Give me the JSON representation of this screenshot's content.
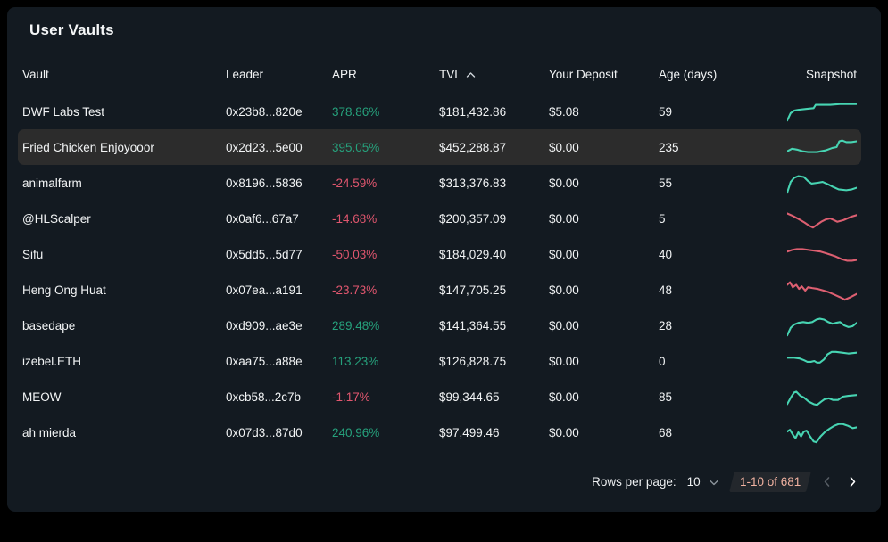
{
  "title": "User Vaults",
  "columns": {
    "vault": "Vault",
    "leader": "Leader",
    "apr": "APR",
    "tvl": "TVL",
    "deposit": "Your Deposit",
    "age": "Age (days)",
    "snapshot": "Snapshot"
  },
  "sort": {
    "column": "TVL",
    "direction": "ascending",
    "icon": "chevron-up-icon"
  },
  "rows": [
    {
      "vault": "DWF Labs Test",
      "leader": "0x23b8...820e",
      "apr": "378.86%",
      "apr_positive": true,
      "tvl": "$181,432.86",
      "deposit": "$5.08",
      "age": "59",
      "highlighted": false,
      "spark_color": "green",
      "spark": [
        [
          0,
          25
        ],
        [
          5,
          16
        ],
        [
          10,
          13
        ],
        [
          16,
          12
        ],
        [
          27,
          11
        ],
        [
          38,
          10
        ],
        [
          41,
          6
        ],
        [
          47,
          6
        ],
        [
          62,
          6
        ],
        [
          76,
          5
        ],
        [
          100,
          5
        ]
      ]
    },
    {
      "vault": "Fried Chicken Enjoyooor",
      "leader": "0x2d23...5e00",
      "apr": "395.05%",
      "apr_positive": true,
      "tvl": "$452,288.87",
      "deposit": "$0.00",
      "age": "235",
      "highlighted": true,
      "spark_color": "green",
      "spark": [
        [
          0,
          19
        ],
        [
          7,
          16
        ],
        [
          14,
          17
        ],
        [
          22,
          19
        ],
        [
          30,
          20
        ],
        [
          43,
          20
        ],
        [
          55,
          18
        ],
        [
          65,
          15
        ],
        [
          71,
          14
        ],
        [
          75,
          7
        ],
        [
          79,
          6
        ],
        [
          85,
          8
        ],
        [
          92,
          8
        ],
        [
          100,
          7
        ]
      ]
    },
    {
      "vault": "animalfarm",
      "leader": "0x8196...5836",
      "apr": "-24.59%",
      "apr_positive": false,
      "tvl": "$313,376.83",
      "deposit": "$0.00",
      "age": "55",
      "highlighted": false,
      "spark_color": "green",
      "spark": [
        [
          0,
          26
        ],
        [
          5,
          13
        ],
        [
          10,
          8
        ],
        [
          16,
          6
        ],
        [
          24,
          7
        ],
        [
          30,
          12
        ],
        [
          35,
          15
        ],
        [
          44,
          14
        ],
        [
          51,
          13
        ],
        [
          59,
          16
        ],
        [
          66,
          19
        ],
        [
          74,
          22
        ],
        [
          85,
          23
        ],
        [
          93,
          22
        ],
        [
          100,
          20
        ]
      ]
    },
    {
      "vault": "@HLScalper",
      "leader": "0x0af6...67a7",
      "apr": "-14.68%",
      "apr_positive": false,
      "tvl": "$200,357.09",
      "deposit": "$0.00",
      "age": "5",
      "highlighted": false,
      "spark_color": "red",
      "spark": [
        [
          0,
          8
        ],
        [
          8,
          11
        ],
        [
          17,
          15
        ],
        [
          25,
          19
        ],
        [
          32,
          23
        ],
        [
          37,
          25
        ],
        [
          44,
          21
        ],
        [
          49,
          18
        ],
        [
          56,
          15
        ],
        [
          62,
          14
        ],
        [
          67,
          16
        ],
        [
          72,
          18
        ],
        [
          81,
          16
        ],
        [
          92,
          12
        ],
        [
          100,
          10
        ]
      ]
    },
    {
      "vault": "Sifu",
      "leader": "0x5dd5...5d77",
      "apr": "-50.03%",
      "apr_positive": false,
      "tvl": "$184,029.40",
      "deposit": "$0.00",
      "age": "40",
      "highlighted": false,
      "spark_color": "red",
      "spark": [
        [
          0,
          11
        ],
        [
          7,
          9
        ],
        [
          14,
          8
        ],
        [
          22,
          8
        ],
        [
          31,
          9
        ],
        [
          40,
          10
        ],
        [
          48,
          11
        ],
        [
          56,
          13
        ],
        [
          63,
          15
        ],
        [
          70,
          17
        ],
        [
          78,
          20
        ],
        [
          86,
          22
        ],
        [
          93,
          22
        ],
        [
          100,
          21
        ]
      ]
    },
    {
      "vault": "Heng Ong Huat",
      "leader": "0x07ea...a191",
      "apr": "-23.73%",
      "apr_positive": false,
      "tvl": "$147,705.25",
      "deposit": "$0.00",
      "age": "48",
      "highlighted": false,
      "spark_color": "red",
      "spark": [
        [
          0,
          8
        ],
        [
          4,
          5
        ],
        [
          8,
          11
        ],
        [
          13,
          8
        ],
        [
          17,
          13
        ],
        [
          21,
          10
        ],
        [
          26,
          15
        ],
        [
          30,
          11
        ],
        [
          36,
          12
        ],
        [
          44,
          13
        ],
        [
          52,
          15
        ],
        [
          60,
          17
        ],
        [
          68,
          20
        ],
        [
          76,
          23
        ],
        [
          83,
          26
        ],
        [
          91,
          23
        ],
        [
          100,
          19
        ]
      ]
    },
    {
      "vault": "basedape",
      "leader": "0xd909...ae3e",
      "apr": "289.48%",
      "apr_positive": true,
      "tvl": "$141,364.55",
      "deposit": "$0.00",
      "age": "28",
      "highlighted": false,
      "spark_color": "green",
      "spark": [
        [
          0,
          26
        ],
        [
          5,
          17
        ],
        [
          10,
          13
        ],
        [
          16,
          11
        ],
        [
          23,
          10
        ],
        [
          30,
          11
        ],
        [
          36,
          10
        ],
        [
          42,
          7
        ],
        [
          47,
          6
        ],
        [
          53,
          7
        ],
        [
          59,
          10
        ],
        [
          65,
          12
        ],
        [
          70,
          11
        ],
        [
          76,
          10
        ],
        [
          82,
          14
        ],
        [
          88,
          16
        ],
        [
          94,
          15
        ],
        [
          100,
          11
        ]
      ]
    },
    {
      "vault": "izebel.ETH",
      "leader": "0xaa75...a88e",
      "apr": "113.23%",
      "apr_positive": true,
      "tvl": "$126,828.75",
      "deposit": "$0.00",
      "age": "0",
      "highlighted": false,
      "spark_color": "green",
      "spark": [
        [
          0,
          10
        ],
        [
          10,
          10
        ],
        [
          18,
          11
        ],
        [
          24,
          13
        ],
        [
          29,
          15
        ],
        [
          34,
          15
        ],
        [
          39,
          14
        ],
        [
          43,
          16
        ],
        [
          47,
          16
        ],
        [
          53,
          12
        ],
        [
          58,
          6
        ],
        [
          64,
          3
        ],
        [
          70,
          3
        ],
        [
          79,
          4
        ],
        [
          88,
          5
        ],
        [
          100,
          4
        ]
      ]
    },
    {
      "vault": "MEOW",
      "leader": "0xcb58...2c7b",
      "apr": "-1.17%",
      "apr_positive": false,
      "tvl": "$99,344.65",
      "deposit": "$0.00",
      "age": "85",
      "highlighted": false,
      "spark_color": "green",
      "spark": [
        [
          0,
          23
        ],
        [
          6,
          14
        ],
        [
          10,
          9
        ],
        [
          13,
          8
        ],
        [
          19,
          13
        ],
        [
          24,
          15
        ],
        [
          31,
          20
        ],
        [
          38,
          23
        ],
        [
          43,
          24
        ],
        [
          49,
          20
        ],
        [
          54,
          17
        ],
        [
          60,
          16
        ],
        [
          66,
          18
        ],
        [
          73,
          18
        ],
        [
          80,
          14
        ],
        [
          88,
          13
        ],
        [
          100,
          12
        ]
      ]
    },
    {
      "vault": "ah mierda",
      "leader": "0x07d3...87d0",
      "apr": "240.96%",
      "apr_positive": true,
      "tvl": "$97,499.46",
      "deposit": "$0.00",
      "age": "68",
      "highlighted": false,
      "spark_color": "green",
      "spark": [
        [
          0,
          13
        ],
        [
          4,
          11
        ],
        [
          9,
          18
        ],
        [
          12,
          21
        ],
        [
          16,
          14
        ],
        [
          20,
          19
        ],
        [
          24,
          13
        ],
        [
          28,
          12
        ],
        [
          33,
          19
        ],
        [
          38,
          25
        ],
        [
          42,
          26
        ],
        [
          48,
          19
        ],
        [
          55,
          13
        ],
        [
          62,
          9
        ],
        [
          68,
          6
        ],
        [
          74,
          4
        ],
        [
          80,
          4
        ],
        [
          87,
          6
        ],
        [
          94,
          9
        ],
        [
          100,
          8
        ]
      ]
    }
  ],
  "footer": {
    "rows_per_page_label": "Rows per page:",
    "rows_per_page_value": "10",
    "rows_per_page_icon": "chevron-down-icon",
    "range_label": "1-10 of 681",
    "prev_icon": "chevron-left-icon",
    "next_icon": "chevron-right-icon"
  },
  "colors": {
    "panel_background": "#131a21",
    "apr_positive": "#26a17c",
    "apr_negative": "#e0566e",
    "spark_green": "#47d4b2",
    "spark_red": "#dd5f71",
    "row_highlight": "#2c2c2c",
    "range_text": "#f0b1a0",
    "range_background": "#23272c",
    "header_divider": "#474e55",
    "text_primary": "#f2f4f5",
    "pager_disabled": "#565d64"
  }
}
